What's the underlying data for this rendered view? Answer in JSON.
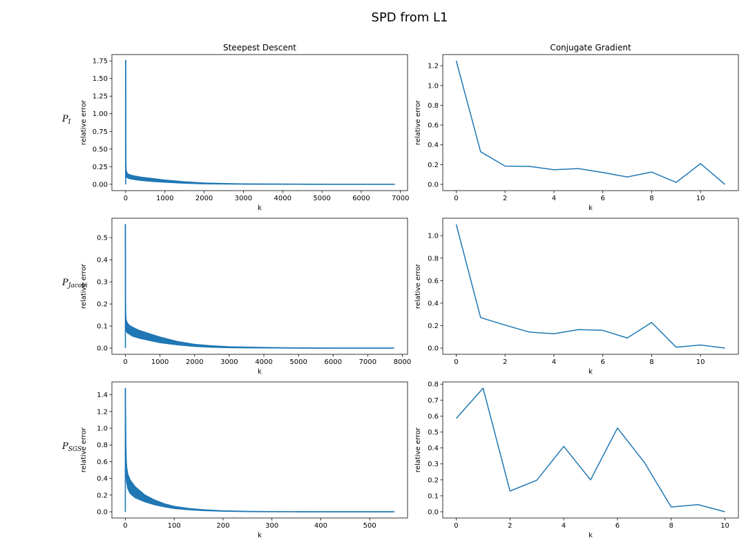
{
  "figure": {
    "title": "SPD from L1"
  },
  "colors": {
    "line": "#1f77b4",
    "axes": "#000000",
    "text": "#000000"
  },
  "chart_data": [
    {
      "type": "line",
      "method": "Steepest Descent",
      "preconditioner": "P_I",
      "row_label": {
        "base": "P",
        "sub": "I"
      },
      "title": "Steepest Descent",
      "xlabel": "k",
      "ylabel": "relative error",
      "xlim": [
        -350,
        7180
      ],
      "ylim": [
        -0.09,
        1.84
      ],
      "xticks": [
        0,
        1000,
        2000,
        3000,
        4000,
        5000,
        6000,
        7000
      ],
      "yticks": [
        0.0,
        0.25,
        0.5,
        0.75,
        1.0,
        1.25,
        1.5,
        1.75
      ],
      "ytick_decimals": 2,
      "peak": 1.76,
      "series": [
        {
          "band_upper": [
            [
              0,
              1.76
            ],
            [
              3,
              0.6
            ],
            [
              6,
              0.34
            ],
            [
              10,
              0.22
            ],
            [
              20,
              0.18
            ],
            [
              50,
              0.15
            ],
            [
              100,
              0.135
            ],
            [
              200,
              0.12
            ],
            [
              400,
              0.1
            ],
            [
              700,
              0.08
            ],
            [
              1000,
              0.06
            ],
            [
              1500,
              0.035
            ],
            [
              2000,
              0.018
            ],
            [
              2500,
              0.01
            ],
            [
              3000,
              0.006
            ],
            [
              3500,
              0.004
            ],
            [
              4500,
              0.002
            ],
            [
              5500,
              0.001
            ],
            [
              6850,
              0.0
            ]
          ],
          "band_lower": [
            [
              0,
              1.76
            ],
            [
              3,
              0.2
            ],
            [
              6,
              0.15
            ],
            [
              10,
              0.12
            ],
            [
              20,
              0.1
            ],
            [
              50,
              0.09
            ],
            [
              100,
              0.08
            ],
            [
              200,
              0.07
            ],
            [
              400,
              0.055
            ],
            [
              700,
              0.04
            ],
            [
              1000,
              0.03
            ],
            [
              1500,
              0.015
            ],
            [
              2000,
              0.007
            ],
            [
              2500,
              0.004
            ],
            [
              3000,
              0.002
            ],
            [
              3500,
              0.001
            ],
            [
              4500,
              0.0
            ],
            [
              5500,
              0.0
            ],
            [
              6850,
              0.0
            ]
          ]
        }
      ]
    },
    {
      "type": "line",
      "method": "Conjugate Gradient",
      "preconditioner": "P_I",
      "title": "Conjugate Gradient",
      "xlabel": "k",
      "ylabel": "relative error",
      "xlim": [
        -0.55,
        11.55
      ],
      "ylim": [
        -0.063,
        1.313
      ],
      "xticks": [
        0,
        2,
        4,
        6,
        8,
        10
      ],
      "yticks": [
        0.0,
        0.2,
        0.4,
        0.6,
        0.8,
        1.0,
        1.2
      ],
      "ytick_decimals": 1,
      "series": [
        {
          "x": [
            0,
            1,
            2,
            3,
            4,
            5,
            6,
            7,
            8,
            9,
            10,
            11
          ],
          "y": [
            1.25,
            0.33,
            0.185,
            0.182,
            0.148,
            0.16,
            0.12,
            0.075,
            0.125,
            0.02,
            0.21,
            0.0
          ]
        }
      ]
    },
    {
      "type": "line",
      "method": "Steepest Descent",
      "preconditioner": "P_Jacobi",
      "row_label": {
        "base": "P",
        "sub": "Jacobi"
      },
      "title": "",
      "xlabel": "k",
      "ylabel": "relative error",
      "xlim": [
        -390,
        8150
      ],
      "ylim": [
        -0.028,
        0.588
      ],
      "xticks": [
        0,
        1000,
        2000,
        3000,
        4000,
        5000,
        6000,
        7000,
        8000
      ],
      "yticks": [
        0.0,
        0.1,
        0.2,
        0.3,
        0.4,
        0.5
      ],
      "ytick_decimals": 1,
      "peak": 0.56,
      "series": [
        {
          "band_upper": [
            [
              0,
              0.56
            ],
            [
              3,
              0.3
            ],
            [
              6,
              0.22
            ],
            [
              10,
              0.16
            ],
            [
              20,
              0.13
            ],
            [
              50,
              0.115
            ],
            [
              100,
              0.105
            ],
            [
              200,
              0.095
            ],
            [
              400,
              0.08
            ],
            [
              700,
              0.065
            ],
            [
              1000,
              0.05
            ],
            [
              1500,
              0.03
            ],
            [
              2000,
              0.017
            ],
            [
              2500,
              0.01
            ],
            [
              3000,
              0.006
            ],
            [
              4000,
              0.003
            ],
            [
              5000,
              0.001
            ],
            [
              6000,
              0.0
            ],
            [
              7750,
              0.0
            ]
          ],
          "band_lower": [
            [
              0,
              0.56
            ],
            [
              3,
              0.14
            ],
            [
              6,
              0.11
            ],
            [
              10,
              0.09
            ],
            [
              20,
              0.08
            ],
            [
              50,
              0.07
            ],
            [
              100,
              0.065
            ],
            [
              200,
              0.055
            ],
            [
              400,
              0.045
            ],
            [
              700,
              0.035
            ],
            [
              1000,
              0.025
            ],
            [
              1500,
              0.015
            ],
            [
              2000,
              0.008
            ],
            [
              2500,
              0.004
            ],
            [
              3000,
              0.002
            ],
            [
              4000,
              0.001
            ],
            [
              5000,
              0.0
            ],
            [
              6000,
              0.0
            ],
            [
              7750,
              0.0
            ]
          ]
        }
      ]
    },
    {
      "type": "line",
      "method": "Conjugate Gradient",
      "preconditioner": "P_Jacobi",
      "title": "",
      "xlabel": "k",
      "ylabel": "relative error",
      "xlim": [
        -0.55,
        11.55
      ],
      "ylim": [
        -0.055,
        1.155
      ],
      "xticks": [
        0,
        2,
        4,
        6,
        8,
        10
      ],
      "yticks": [
        0.0,
        0.2,
        0.4,
        0.6,
        0.8,
        1.0
      ],
      "ytick_decimals": 1,
      "series": [
        {
          "x": [
            0,
            1,
            2,
            3,
            4,
            5,
            6,
            7,
            8,
            9,
            10,
            11
          ],
          "y": [
            1.1,
            0.272,
            0.205,
            0.142,
            0.128,
            0.165,
            0.158,
            0.09,
            0.228,
            0.008,
            0.028,
            0.0
          ]
        }
      ]
    },
    {
      "type": "line",
      "method": "Steepest Descent",
      "preconditioner": "P_SGS",
      "row_label": {
        "base": "P",
        "sub": "SGS"
      },
      "title": "",
      "xlabel": "k",
      "ylabel": "relative error",
      "xlim": [
        -27.5,
        577.5
      ],
      "ylim": [
        -0.074,
        1.554
      ],
      "xticks": [
        0,
        100,
        200,
        300,
        400,
        500
      ],
      "yticks": [
        0.0,
        0.2,
        0.4,
        0.6,
        0.8,
        1.0,
        1.2,
        1.4
      ],
      "ytick_decimals": 1,
      "peak": 1.48,
      "series": [
        {
          "band_upper": [
            [
              0,
              1.48
            ],
            [
              1,
              0.8
            ],
            [
              2,
              0.6
            ],
            [
              3,
              0.52
            ],
            [
              5,
              0.45
            ],
            [
              10,
              0.38
            ],
            [
              20,
              0.3
            ],
            [
              40,
              0.2
            ],
            [
              60,
              0.14
            ],
            [
              80,
              0.095
            ],
            [
              100,
              0.065
            ],
            [
              130,
              0.04
            ],
            [
              160,
              0.024
            ],
            [
              200,
              0.012
            ],
            [
              250,
              0.005
            ],
            [
              300,
              0.002
            ],
            [
              350,
              0.001
            ],
            [
              400,
              0.0
            ],
            [
              550,
              0.0
            ]
          ],
          "band_lower": [
            [
              0,
              1.48
            ],
            [
              1,
              0.5
            ],
            [
              2,
              0.4
            ],
            [
              3,
              0.35
            ],
            [
              5,
              0.28
            ],
            [
              10,
              0.22
            ],
            [
              20,
              0.17
            ],
            [
              40,
              0.12
            ],
            [
              60,
              0.085
            ],
            [
              80,
              0.06
            ],
            [
              100,
              0.04
            ],
            [
              130,
              0.025
            ],
            [
              160,
              0.015
            ],
            [
              200,
              0.008
            ],
            [
              250,
              0.003
            ],
            [
              300,
              0.001
            ],
            [
              350,
              0.0
            ],
            [
              400,
              0.0
            ],
            [
              550,
              0.0
            ]
          ]
        }
      ]
    },
    {
      "type": "line",
      "method": "Conjugate Gradient",
      "preconditioner": "P_SGS",
      "title": "",
      "xlabel": "k",
      "ylabel": "relative error",
      "xlim": [
        -0.5,
        10.5
      ],
      "ylim": [
        -0.039,
        0.814
      ],
      "xticks": [
        0,
        2,
        4,
        6,
        8,
        10
      ],
      "yticks": [
        0.0,
        0.1,
        0.2,
        0.3,
        0.4,
        0.5,
        0.6,
        0.7,
        0.8
      ],
      "ytick_decimals": 1,
      "series": [
        {
          "x": [
            0,
            1,
            2,
            3,
            4,
            5,
            6,
            7,
            8,
            9,
            10
          ],
          "y": [
            0.585,
            0.775,
            0.13,
            0.198,
            0.41,
            0.2,
            0.525,
            0.31,
            0.03,
            0.045,
            0.0
          ]
        }
      ]
    }
  ]
}
